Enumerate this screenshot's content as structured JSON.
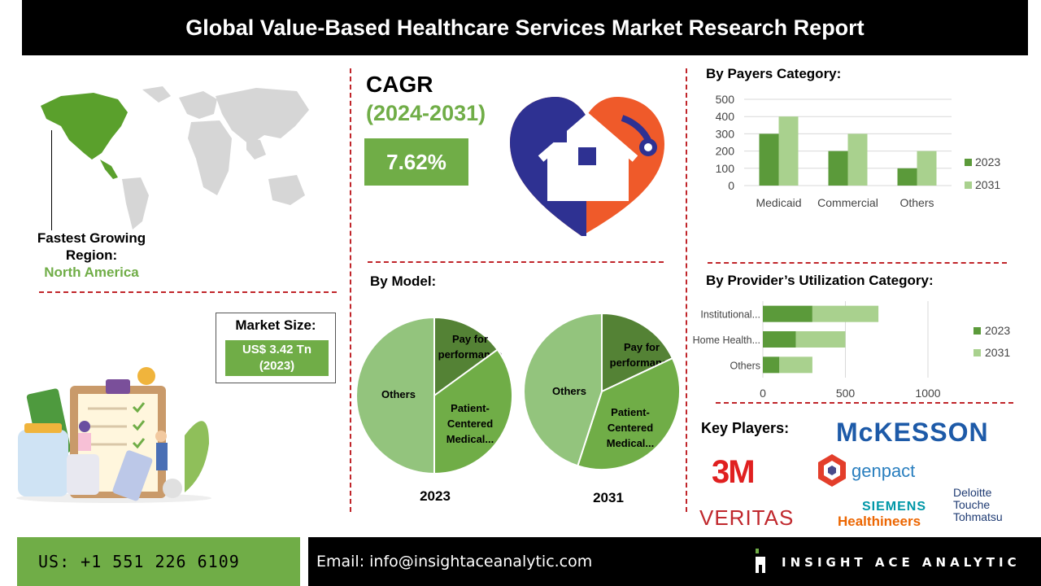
{
  "header": {
    "title": "Global Value-Based Healthcare Services Market Research Report"
  },
  "region": {
    "label": "Fastest Growing Region:",
    "value": "North America"
  },
  "cagr": {
    "title": "CAGR",
    "period": "(2024-2031)",
    "value": "7.62%"
  },
  "market_size": {
    "title": "Market Size:",
    "value": "US$ 3.42 Tn",
    "year": "(2023)"
  },
  "sections": {
    "payers": "By Payers Category:",
    "model": "By Model:",
    "provider": "By Provider’s Utilization Category:",
    "key_players": "Key Players:"
  },
  "players": [
    "McKESSON",
    "3M",
    "genpact",
    "VERITAS",
    "SIEMENS",
    "Healthineers",
    "Deloitte",
    "Touche",
    "Tohmatsu"
  ],
  "footer": {
    "phone": "US: +1 551 226 6109",
    "email": "Email: info@insightaceanalytic.com",
    "brand": "INSIGHT ACE ANALYTIC"
  },
  "colors": {
    "dark_green": "#5b9a3a",
    "light_green": "#a9d18e",
    "accent": "#70ad47",
    "divider": "#c0252a"
  },
  "chart_data": [
    {
      "type": "bar",
      "title": "By Payers Category:",
      "categories": [
        "Medicaid",
        "Commercial",
        "Others"
      ],
      "series": [
        {
          "name": "2023",
          "values": [
            300,
            200,
            100
          ]
        },
        {
          "name": "2031",
          "values": [
            400,
            300,
            200
          ]
        }
      ],
      "ylim": [
        0,
        500
      ],
      "yticks": [
        0,
        100,
        200,
        300,
        400,
        500
      ],
      "grid": true,
      "legend": "right"
    },
    {
      "type": "bar",
      "orientation": "horizontal",
      "stacked": true,
      "title": "By Provider’s Utilization Category:",
      "categories": [
        "Institutional...",
        "Home Health...",
        "Others"
      ],
      "series": [
        {
          "name": "2023",
          "values": [
            300,
            200,
            100
          ]
        },
        {
          "name": "2031",
          "values": [
            400,
            300,
            200
          ]
        }
      ],
      "xlim": [
        0,
        1200
      ],
      "xticks": [
        0,
        500,
        1000
      ],
      "grid": true,
      "legend": "right"
    },
    {
      "type": "pie",
      "title": "2023",
      "labels": [
        "Pay for performance",
        "Patient-Centered Medical...",
        "Others"
      ],
      "values": [
        15,
        35,
        50
      ]
    },
    {
      "type": "pie",
      "title": "2031",
      "labels": [
        "Pay for performance",
        "Patient-Centered Medical...",
        "Others"
      ],
      "values": [
        18,
        37,
        45
      ]
    }
  ]
}
